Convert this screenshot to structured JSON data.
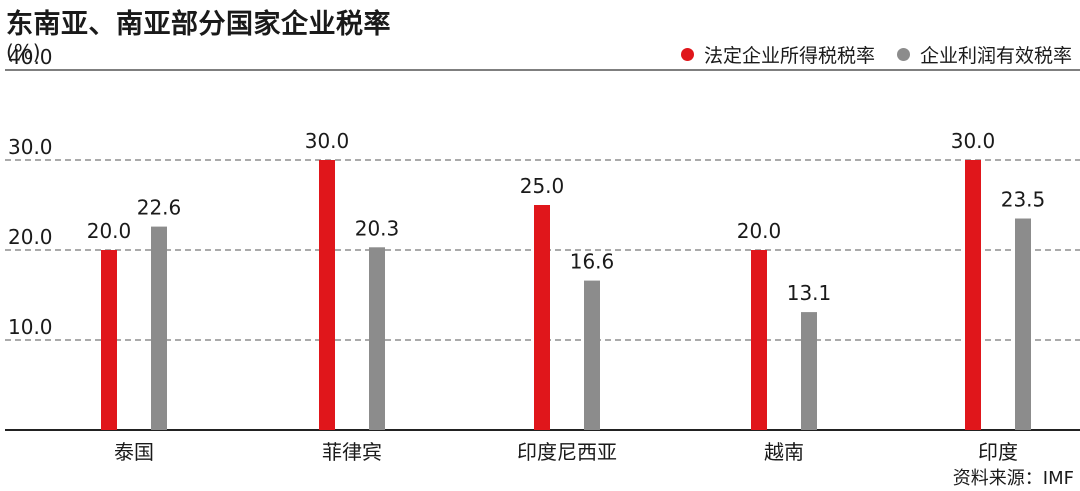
{
  "chart_data": {
    "type": "bar",
    "title": "东南亚、南亚部分国家企业税率",
    "unit": "(%)",
    "categories": [
      "泰国",
      "菲律宾",
      "印度尼西亚",
      "越南",
      "印度"
    ],
    "series": [
      {
        "name": "法定企业所得税税率",
        "color": "#e0161b",
        "values": [
          20.0,
          30.0,
          25.0,
          20.0,
          30.0
        ]
      },
      {
        "name": "企业利润有效税率",
        "color": "#8c8c8c",
        "values": [
          22.6,
          20.3,
          16.6,
          13.1,
          23.5
        ]
      }
    ],
    "ylim": [
      0,
      40
    ],
    "yticks": [
      "10.0",
      "20.0",
      "30.0",
      "40.0"
    ],
    "grid": true,
    "legend_position": "top-right",
    "source": "资料来源：IMF"
  }
}
